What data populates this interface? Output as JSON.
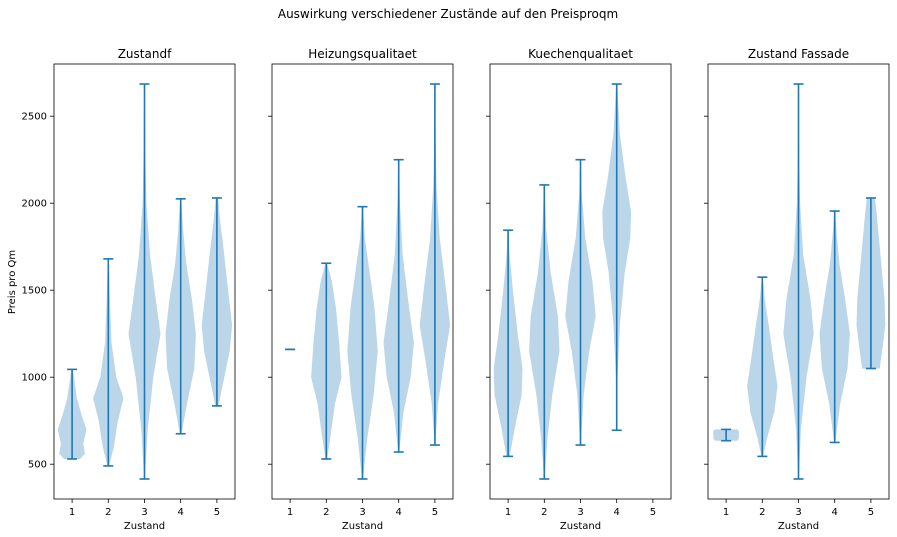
{
  "figure": {
    "title": "Auswirkung verschiedener Zustände auf den Preisproqm",
    "ylabel": "Preis pro Qm",
    "xlabel": "Zustand"
  },
  "colors": {
    "violin_fill": "#1f77b4",
    "violin_line": "#1f77b4",
    "axis": "#000000"
  },
  "chart_data": [
    {
      "type": "violin",
      "title": "Zustandf",
      "xlabel": "Zustand",
      "ylabel": "Preis pro Qm",
      "x_ticks": [
        "1",
        "2",
        "3",
        "4",
        "5"
      ],
      "y_ticks": [
        "500",
        "1000",
        "1500",
        "2000",
        "2500"
      ],
      "ylim": [
        300,
        2800
      ],
      "groups": [
        {
          "x": 1,
          "min": 530,
          "max": 1045,
          "profile": [
            [
              530,
              0.5
            ],
            [
              560,
              0.8
            ],
            [
              620,
              0.7
            ],
            [
              700,
              0.9
            ],
            [
              780,
              0.6
            ],
            [
              880,
              0.3
            ],
            [
              1045,
              0.05
            ]
          ]
        },
        {
          "x": 2,
          "min": 490,
          "max": 1680,
          "profile": [
            [
              490,
              0.05
            ],
            [
              600,
              0.35
            ],
            [
              750,
              0.6
            ],
            [
              880,
              0.95
            ],
            [
              1000,
              0.5
            ],
            [
              1200,
              0.2
            ],
            [
              1450,
              0.1
            ],
            [
              1680,
              0.03
            ]
          ]
        },
        {
          "x": 3,
          "min": 415,
          "max": 2685,
          "profile": [
            [
              415,
              0.02
            ],
            [
              700,
              0.2
            ],
            [
              1000,
              0.55
            ],
            [
              1250,
              1.0
            ],
            [
              1450,
              0.7
            ],
            [
              1700,
              0.35
            ],
            [
              2000,
              0.12
            ],
            [
              2300,
              0.05
            ],
            [
              2685,
              0.02
            ]
          ]
        },
        {
          "x": 4,
          "min": 675,
          "max": 2025,
          "profile": [
            [
              675,
              0.05
            ],
            [
              850,
              0.4
            ],
            [
              1050,
              0.85
            ],
            [
              1250,
              0.95
            ],
            [
              1450,
              0.7
            ],
            [
              1650,
              0.35
            ],
            [
              1850,
              0.15
            ],
            [
              2025,
              0.03
            ]
          ]
        },
        {
          "x": 5,
          "min": 835,
          "max": 2030,
          "profile": [
            [
              835,
              0.1
            ],
            [
              950,
              0.35
            ],
            [
              1150,
              0.8
            ],
            [
              1300,
              0.95
            ],
            [
              1500,
              0.7
            ],
            [
              1750,
              0.4
            ],
            [
              1900,
              0.2
            ],
            [
              2030,
              0.08
            ]
          ]
        }
      ]
    },
    {
      "type": "violin",
      "title": "Heizungsqualitaet",
      "xlabel": "Zustand",
      "ylabel": "",
      "x_ticks": [
        "1",
        "2",
        "3",
        "4",
        "5"
      ],
      "ylim": [
        300,
        2800
      ],
      "groups": [
        {
          "x": 1,
          "min": 1160,
          "max": 1160,
          "profile": []
        },
        {
          "x": 2,
          "min": 530,
          "max": 1655,
          "profile": [
            [
              530,
              0.05
            ],
            [
              650,
              0.25
            ],
            [
              850,
              0.55
            ],
            [
              1000,
              0.95
            ],
            [
              1200,
              0.8
            ],
            [
              1400,
              0.6
            ],
            [
              1550,
              0.35
            ],
            [
              1655,
              0.05
            ]
          ]
        },
        {
          "x": 3,
          "min": 415,
          "max": 1980,
          "profile": [
            [
              415,
              0.03
            ],
            [
              650,
              0.3
            ],
            [
              900,
              0.7
            ],
            [
              1150,
              0.95
            ],
            [
              1400,
              0.75
            ],
            [
              1600,
              0.45
            ],
            [
              1800,
              0.15
            ],
            [
              1980,
              0.03
            ]
          ]
        },
        {
          "x": 4,
          "min": 570,
          "max": 2250,
          "profile": [
            [
              570,
              0.03
            ],
            [
              800,
              0.3
            ],
            [
              1000,
              0.75
            ],
            [
              1200,
              0.95
            ],
            [
              1400,
              0.65
            ],
            [
              1700,
              0.25
            ],
            [
              2000,
              0.08
            ],
            [
              2250,
              0.02
            ]
          ]
        },
        {
          "x": 5,
          "min": 610,
          "max": 2685,
          "profile": [
            [
              610,
              0.02
            ],
            [
              850,
              0.2
            ],
            [
              1100,
              0.6
            ],
            [
              1300,
              0.95
            ],
            [
              1500,
              0.7
            ],
            [
              1800,
              0.3
            ],
            [
              2100,
              0.1
            ],
            [
              2400,
              0.04
            ],
            [
              2685,
              0.02
            ]
          ]
        }
      ]
    },
    {
      "type": "violin",
      "title": "Kuechenqualitaet",
      "xlabel": "Zustand",
      "ylabel": "",
      "x_ticks": [
        "1",
        "2",
        "3",
        "4",
        "5"
      ],
      "ylim": [
        300,
        2800
      ],
      "groups": [
        {
          "x": 1,
          "min": 545,
          "max": 1845,
          "profile": [
            [
              545,
              0.1
            ],
            [
              700,
              0.4
            ],
            [
              900,
              0.85
            ],
            [
              1050,
              0.9
            ],
            [
              1250,
              0.6
            ],
            [
              1500,
              0.3
            ],
            [
              1700,
              0.1
            ],
            [
              1845,
              0.03
            ]
          ]
        },
        {
          "x": 2,
          "min": 415,
          "max": 2105,
          "profile": [
            [
              415,
              0.02
            ],
            [
              650,
              0.2
            ],
            [
              900,
              0.5
            ],
            [
              1150,
              0.95
            ],
            [
              1350,
              0.85
            ],
            [
              1600,
              0.4
            ],
            [
              1850,
              0.12
            ],
            [
              2105,
              0.02
            ]
          ]
        },
        {
          "x": 3,
          "min": 610,
          "max": 2250,
          "profile": [
            [
              610,
              0.02
            ],
            [
              900,
              0.2
            ],
            [
              1150,
              0.55
            ],
            [
              1350,
              0.95
            ],
            [
              1550,
              0.75
            ],
            [
              1800,
              0.3
            ],
            [
              2050,
              0.08
            ],
            [
              2250,
              0.02
            ]
          ]
        },
        {
          "x": 4,
          "min": 695,
          "max": 2685,
          "profile": [
            [
              695,
              0.01
            ],
            [
              1000,
              0.05
            ],
            [
              1300,
              0.2
            ],
            [
              1600,
              0.5
            ],
            [
              1800,
              0.85
            ],
            [
              1950,
              0.9
            ],
            [
              2150,
              0.55
            ],
            [
              2400,
              0.2
            ],
            [
              2685,
              0.03
            ]
          ]
        }
      ]
    },
    {
      "type": "violin",
      "title": "Zustand Fassade",
      "xlabel": "Zustand",
      "ylabel": "",
      "x_ticks": [
        "1",
        "2",
        "3",
        "4",
        "5"
      ],
      "ylim": [
        300,
        2800
      ],
      "groups": [
        {
          "x": 1,
          "min": 635,
          "max": 700,
          "profile": [
            [
              635,
              0.7
            ],
            [
              650,
              0.8
            ],
            [
              670,
              0.8
            ],
            [
              690,
              0.8
            ],
            [
              700,
              0.7
            ]
          ]
        },
        {
          "x": 2,
          "min": 545,
          "max": 1575,
          "profile": [
            [
              545,
              0.05
            ],
            [
              650,
              0.3
            ],
            [
              800,
              0.75
            ],
            [
              950,
              0.95
            ],
            [
              1100,
              0.7
            ],
            [
              1300,
              0.4
            ],
            [
              1450,
              0.15
            ],
            [
              1575,
              0.03
            ]
          ]
        },
        {
          "x": 3,
          "min": 415,
          "max": 2685,
          "profile": [
            [
              415,
              0.02
            ],
            [
              700,
              0.15
            ],
            [
              1000,
              0.5
            ],
            [
              1250,
              0.95
            ],
            [
              1450,
              0.75
            ],
            [
              1700,
              0.3
            ],
            [
              2000,
              0.1
            ],
            [
              2300,
              0.04
            ],
            [
              2685,
              0.02
            ]
          ]
        },
        {
          "x": 4,
          "min": 625,
          "max": 1955,
          "profile": [
            [
              625,
              0.03
            ],
            [
              850,
              0.35
            ],
            [
              1050,
              0.8
            ],
            [
              1250,
              0.95
            ],
            [
              1450,
              0.65
            ],
            [
              1650,
              0.3
            ],
            [
              1850,
              0.1
            ],
            [
              1955,
              0.03
            ]
          ]
        },
        {
          "x": 5,
          "min": 1050,
          "max": 2030,
          "profile": [
            [
              1050,
              0.55
            ],
            [
              1150,
              0.7
            ],
            [
              1300,
              0.9
            ],
            [
              1450,
              0.85
            ],
            [
              1600,
              0.7
            ],
            [
              1800,
              0.5
            ],
            [
              1950,
              0.35
            ],
            [
              2030,
              0.25
            ]
          ]
        }
      ]
    }
  ]
}
